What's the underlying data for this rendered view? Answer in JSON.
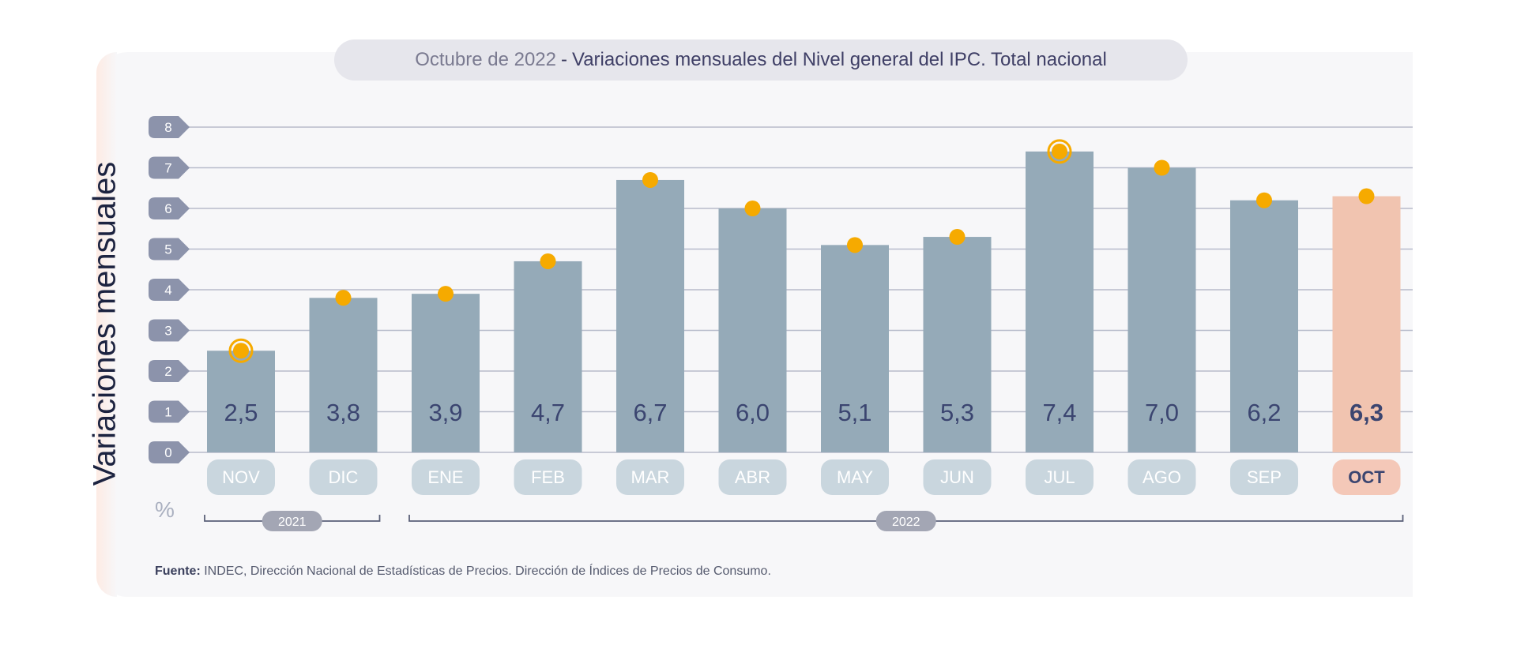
{
  "title": {
    "date": "Octubre de 2022",
    "separator": "-",
    "main": "Variaciones mensuales del Nivel general del IPC. Total nacional"
  },
  "ylabel": "Variaciones mensuales",
  "unit": "%",
  "source_label": "Fuente:",
  "source_text": "INDEC, Dirección Nacional de Estadísticas de Precios. Dirección de Índices de Precios de Consumo.",
  "colors": {
    "bar": "#95aab8",
    "highlight_bar": "#f1c4b0",
    "marker": "#f6aa00",
    "value_text": "#3b4570",
    "month_pill": "#c9d6de",
    "highlight_pill": "#f4c8b8",
    "axis_pill": "#8c93ab",
    "grid": "#b8bccb"
  },
  "chart_data": {
    "type": "bar",
    "categories": [
      "NOV",
      "DIC",
      "ENE",
      "FEB",
      "MAR",
      "ABR",
      "MAY",
      "JUN",
      "JUL",
      "AGO",
      "SEP",
      "OCT"
    ],
    "values": [
      2.5,
      3.8,
      3.9,
      4.7,
      6.7,
      6.0,
      5.1,
      5.3,
      7.4,
      7.0,
      6.2,
      6.3
    ],
    "value_labels": [
      "2,5",
      "3,8",
      "3,9",
      "4,7",
      "6,7",
      "6,0",
      "5,1",
      "5,3",
      "7,4",
      "7,0",
      "6,2",
      "6,3"
    ],
    "highlight_index": 11,
    "ringed_indices": [
      0,
      8
    ],
    "ylim": [
      0,
      8
    ],
    "yticks": [
      "0",
      "1",
      "2",
      "3",
      "4",
      "5",
      "6",
      "7",
      "8"
    ],
    "years": [
      {
        "label": "2021",
        "from": 0,
        "to": 1
      },
      {
        "label": "2022",
        "from": 2,
        "to": 11
      }
    ],
    "grid": true
  }
}
